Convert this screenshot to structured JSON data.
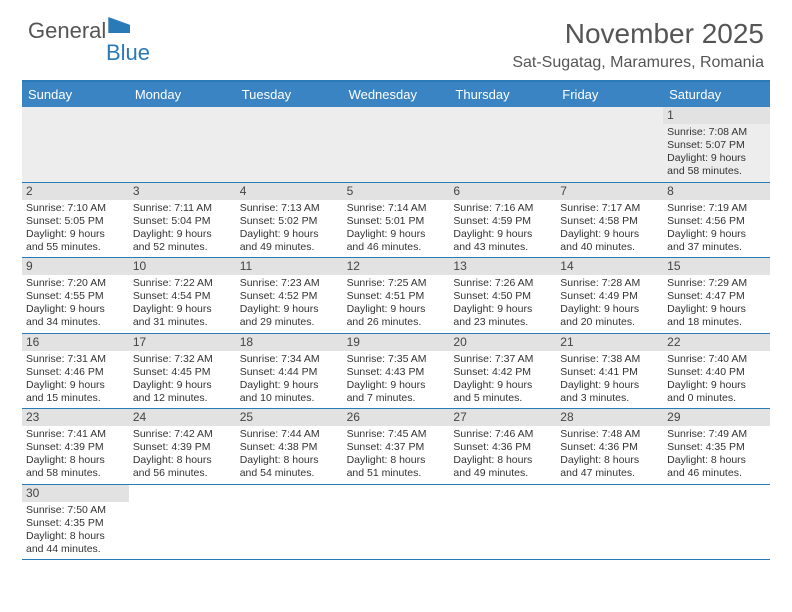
{
  "logo": {
    "part1": "General",
    "part2": "Blue"
  },
  "title": "November 2025",
  "location": "Sat-Sugatag, Maramures, Romania",
  "colors": {
    "header_bg": "#3a84c4",
    "border": "#2a7ab8",
    "daynum_bg": "#e2e2e2",
    "first_row_bg": "#ededed",
    "text": "#333333",
    "title_text": "#555555"
  },
  "weekdays": [
    "Sunday",
    "Monday",
    "Tuesday",
    "Wednesday",
    "Thursday",
    "Friday",
    "Saturday"
  ],
  "weeks": [
    [
      null,
      null,
      null,
      null,
      null,
      null,
      {
        "n": "1",
        "sr": "Sunrise: 7:08 AM",
        "ss": "Sunset: 5:07 PM",
        "d1": "Daylight: 9 hours",
        "d2": "and 58 minutes."
      }
    ],
    [
      {
        "n": "2",
        "sr": "Sunrise: 7:10 AM",
        "ss": "Sunset: 5:05 PM",
        "d1": "Daylight: 9 hours",
        "d2": "and 55 minutes."
      },
      {
        "n": "3",
        "sr": "Sunrise: 7:11 AM",
        "ss": "Sunset: 5:04 PM",
        "d1": "Daylight: 9 hours",
        "d2": "and 52 minutes."
      },
      {
        "n": "4",
        "sr": "Sunrise: 7:13 AM",
        "ss": "Sunset: 5:02 PM",
        "d1": "Daylight: 9 hours",
        "d2": "and 49 minutes."
      },
      {
        "n": "5",
        "sr": "Sunrise: 7:14 AM",
        "ss": "Sunset: 5:01 PM",
        "d1": "Daylight: 9 hours",
        "d2": "and 46 minutes."
      },
      {
        "n": "6",
        "sr": "Sunrise: 7:16 AM",
        "ss": "Sunset: 4:59 PM",
        "d1": "Daylight: 9 hours",
        "d2": "and 43 minutes."
      },
      {
        "n": "7",
        "sr": "Sunrise: 7:17 AM",
        "ss": "Sunset: 4:58 PM",
        "d1": "Daylight: 9 hours",
        "d2": "and 40 minutes."
      },
      {
        "n": "8",
        "sr": "Sunrise: 7:19 AM",
        "ss": "Sunset: 4:56 PM",
        "d1": "Daylight: 9 hours",
        "d2": "and 37 minutes."
      }
    ],
    [
      {
        "n": "9",
        "sr": "Sunrise: 7:20 AM",
        "ss": "Sunset: 4:55 PM",
        "d1": "Daylight: 9 hours",
        "d2": "and 34 minutes."
      },
      {
        "n": "10",
        "sr": "Sunrise: 7:22 AM",
        "ss": "Sunset: 4:54 PM",
        "d1": "Daylight: 9 hours",
        "d2": "and 31 minutes."
      },
      {
        "n": "11",
        "sr": "Sunrise: 7:23 AM",
        "ss": "Sunset: 4:52 PM",
        "d1": "Daylight: 9 hours",
        "d2": "and 29 minutes."
      },
      {
        "n": "12",
        "sr": "Sunrise: 7:25 AM",
        "ss": "Sunset: 4:51 PM",
        "d1": "Daylight: 9 hours",
        "d2": "and 26 minutes."
      },
      {
        "n": "13",
        "sr": "Sunrise: 7:26 AM",
        "ss": "Sunset: 4:50 PM",
        "d1": "Daylight: 9 hours",
        "d2": "and 23 minutes."
      },
      {
        "n": "14",
        "sr": "Sunrise: 7:28 AM",
        "ss": "Sunset: 4:49 PM",
        "d1": "Daylight: 9 hours",
        "d2": "and 20 minutes."
      },
      {
        "n": "15",
        "sr": "Sunrise: 7:29 AM",
        "ss": "Sunset: 4:47 PM",
        "d1": "Daylight: 9 hours",
        "d2": "and 18 minutes."
      }
    ],
    [
      {
        "n": "16",
        "sr": "Sunrise: 7:31 AM",
        "ss": "Sunset: 4:46 PM",
        "d1": "Daylight: 9 hours",
        "d2": "and 15 minutes."
      },
      {
        "n": "17",
        "sr": "Sunrise: 7:32 AM",
        "ss": "Sunset: 4:45 PM",
        "d1": "Daylight: 9 hours",
        "d2": "and 12 minutes."
      },
      {
        "n": "18",
        "sr": "Sunrise: 7:34 AM",
        "ss": "Sunset: 4:44 PM",
        "d1": "Daylight: 9 hours",
        "d2": "and 10 minutes."
      },
      {
        "n": "19",
        "sr": "Sunrise: 7:35 AM",
        "ss": "Sunset: 4:43 PM",
        "d1": "Daylight: 9 hours",
        "d2": "and 7 minutes."
      },
      {
        "n": "20",
        "sr": "Sunrise: 7:37 AM",
        "ss": "Sunset: 4:42 PM",
        "d1": "Daylight: 9 hours",
        "d2": "and 5 minutes."
      },
      {
        "n": "21",
        "sr": "Sunrise: 7:38 AM",
        "ss": "Sunset: 4:41 PM",
        "d1": "Daylight: 9 hours",
        "d2": "and 3 minutes."
      },
      {
        "n": "22",
        "sr": "Sunrise: 7:40 AM",
        "ss": "Sunset: 4:40 PM",
        "d1": "Daylight: 9 hours",
        "d2": "and 0 minutes."
      }
    ],
    [
      {
        "n": "23",
        "sr": "Sunrise: 7:41 AM",
        "ss": "Sunset: 4:39 PM",
        "d1": "Daylight: 8 hours",
        "d2": "and 58 minutes."
      },
      {
        "n": "24",
        "sr": "Sunrise: 7:42 AM",
        "ss": "Sunset: 4:39 PM",
        "d1": "Daylight: 8 hours",
        "d2": "and 56 minutes."
      },
      {
        "n": "25",
        "sr": "Sunrise: 7:44 AM",
        "ss": "Sunset: 4:38 PM",
        "d1": "Daylight: 8 hours",
        "d2": "and 54 minutes."
      },
      {
        "n": "26",
        "sr": "Sunrise: 7:45 AM",
        "ss": "Sunset: 4:37 PM",
        "d1": "Daylight: 8 hours",
        "d2": "and 51 minutes."
      },
      {
        "n": "27",
        "sr": "Sunrise: 7:46 AM",
        "ss": "Sunset: 4:36 PM",
        "d1": "Daylight: 8 hours",
        "d2": "and 49 minutes."
      },
      {
        "n": "28",
        "sr": "Sunrise: 7:48 AM",
        "ss": "Sunset: 4:36 PM",
        "d1": "Daylight: 8 hours",
        "d2": "and 47 minutes."
      },
      {
        "n": "29",
        "sr": "Sunrise: 7:49 AM",
        "ss": "Sunset: 4:35 PM",
        "d1": "Daylight: 8 hours",
        "d2": "and 46 minutes."
      }
    ],
    [
      {
        "n": "30",
        "sr": "Sunrise: 7:50 AM",
        "ss": "Sunset: 4:35 PM",
        "d1": "Daylight: 8 hours",
        "d2": "and 44 minutes."
      },
      null,
      null,
      null,
      null,
      null,
      null
    ]
  ]
}
